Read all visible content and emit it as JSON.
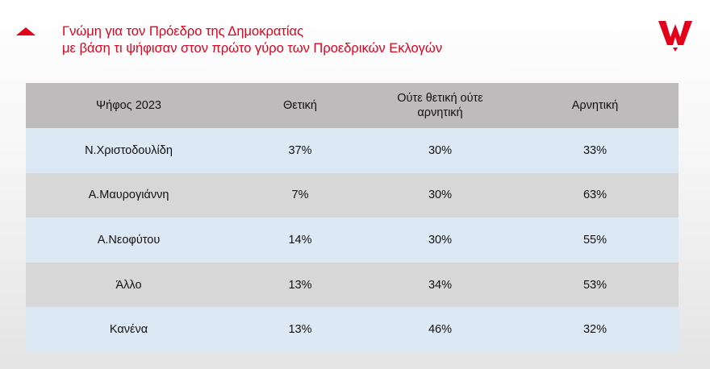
{
  "header": {
    "title_line1": "Γνώμη για τον Πρόεδρο της Δημοκρατίας",
    "title_line2": "με βάση τι ψήφισαν στον πρώτο γύρο των Προεδρικών Εκλογών",
    "accent_color": "#e2001a",
    "logo_icon": "w-logo-icon",
    "triangle_icon": "triangle-icon"
  },
  "chart_data": {
    "type": "table",
    "columns": [
      "Ψήφος 2023",
      "Θετική",
      "Ούτε θετική ούτε αρνητική",
      "Αρνητική"
    ],
    "rows": [
      [
        "Ν.Χριστοδουλίδη",
        "37%",
        "30%",
        "33%"
      ],
      [
        "Α.Μαυρογιάννη",
        "7%",
        "30%",
        "63%"
      ],
      [
        "Α.Νεοφύτου",
        "14%",
        "30%",
        "55%"
      ],
      [
        "Άλλο",
        "13%",
        "34%",
        "53%"
      ],
      [
        "Κανένα",
        "13%",
        "46%",
        "32%"
      ]
    ]
  }
}
